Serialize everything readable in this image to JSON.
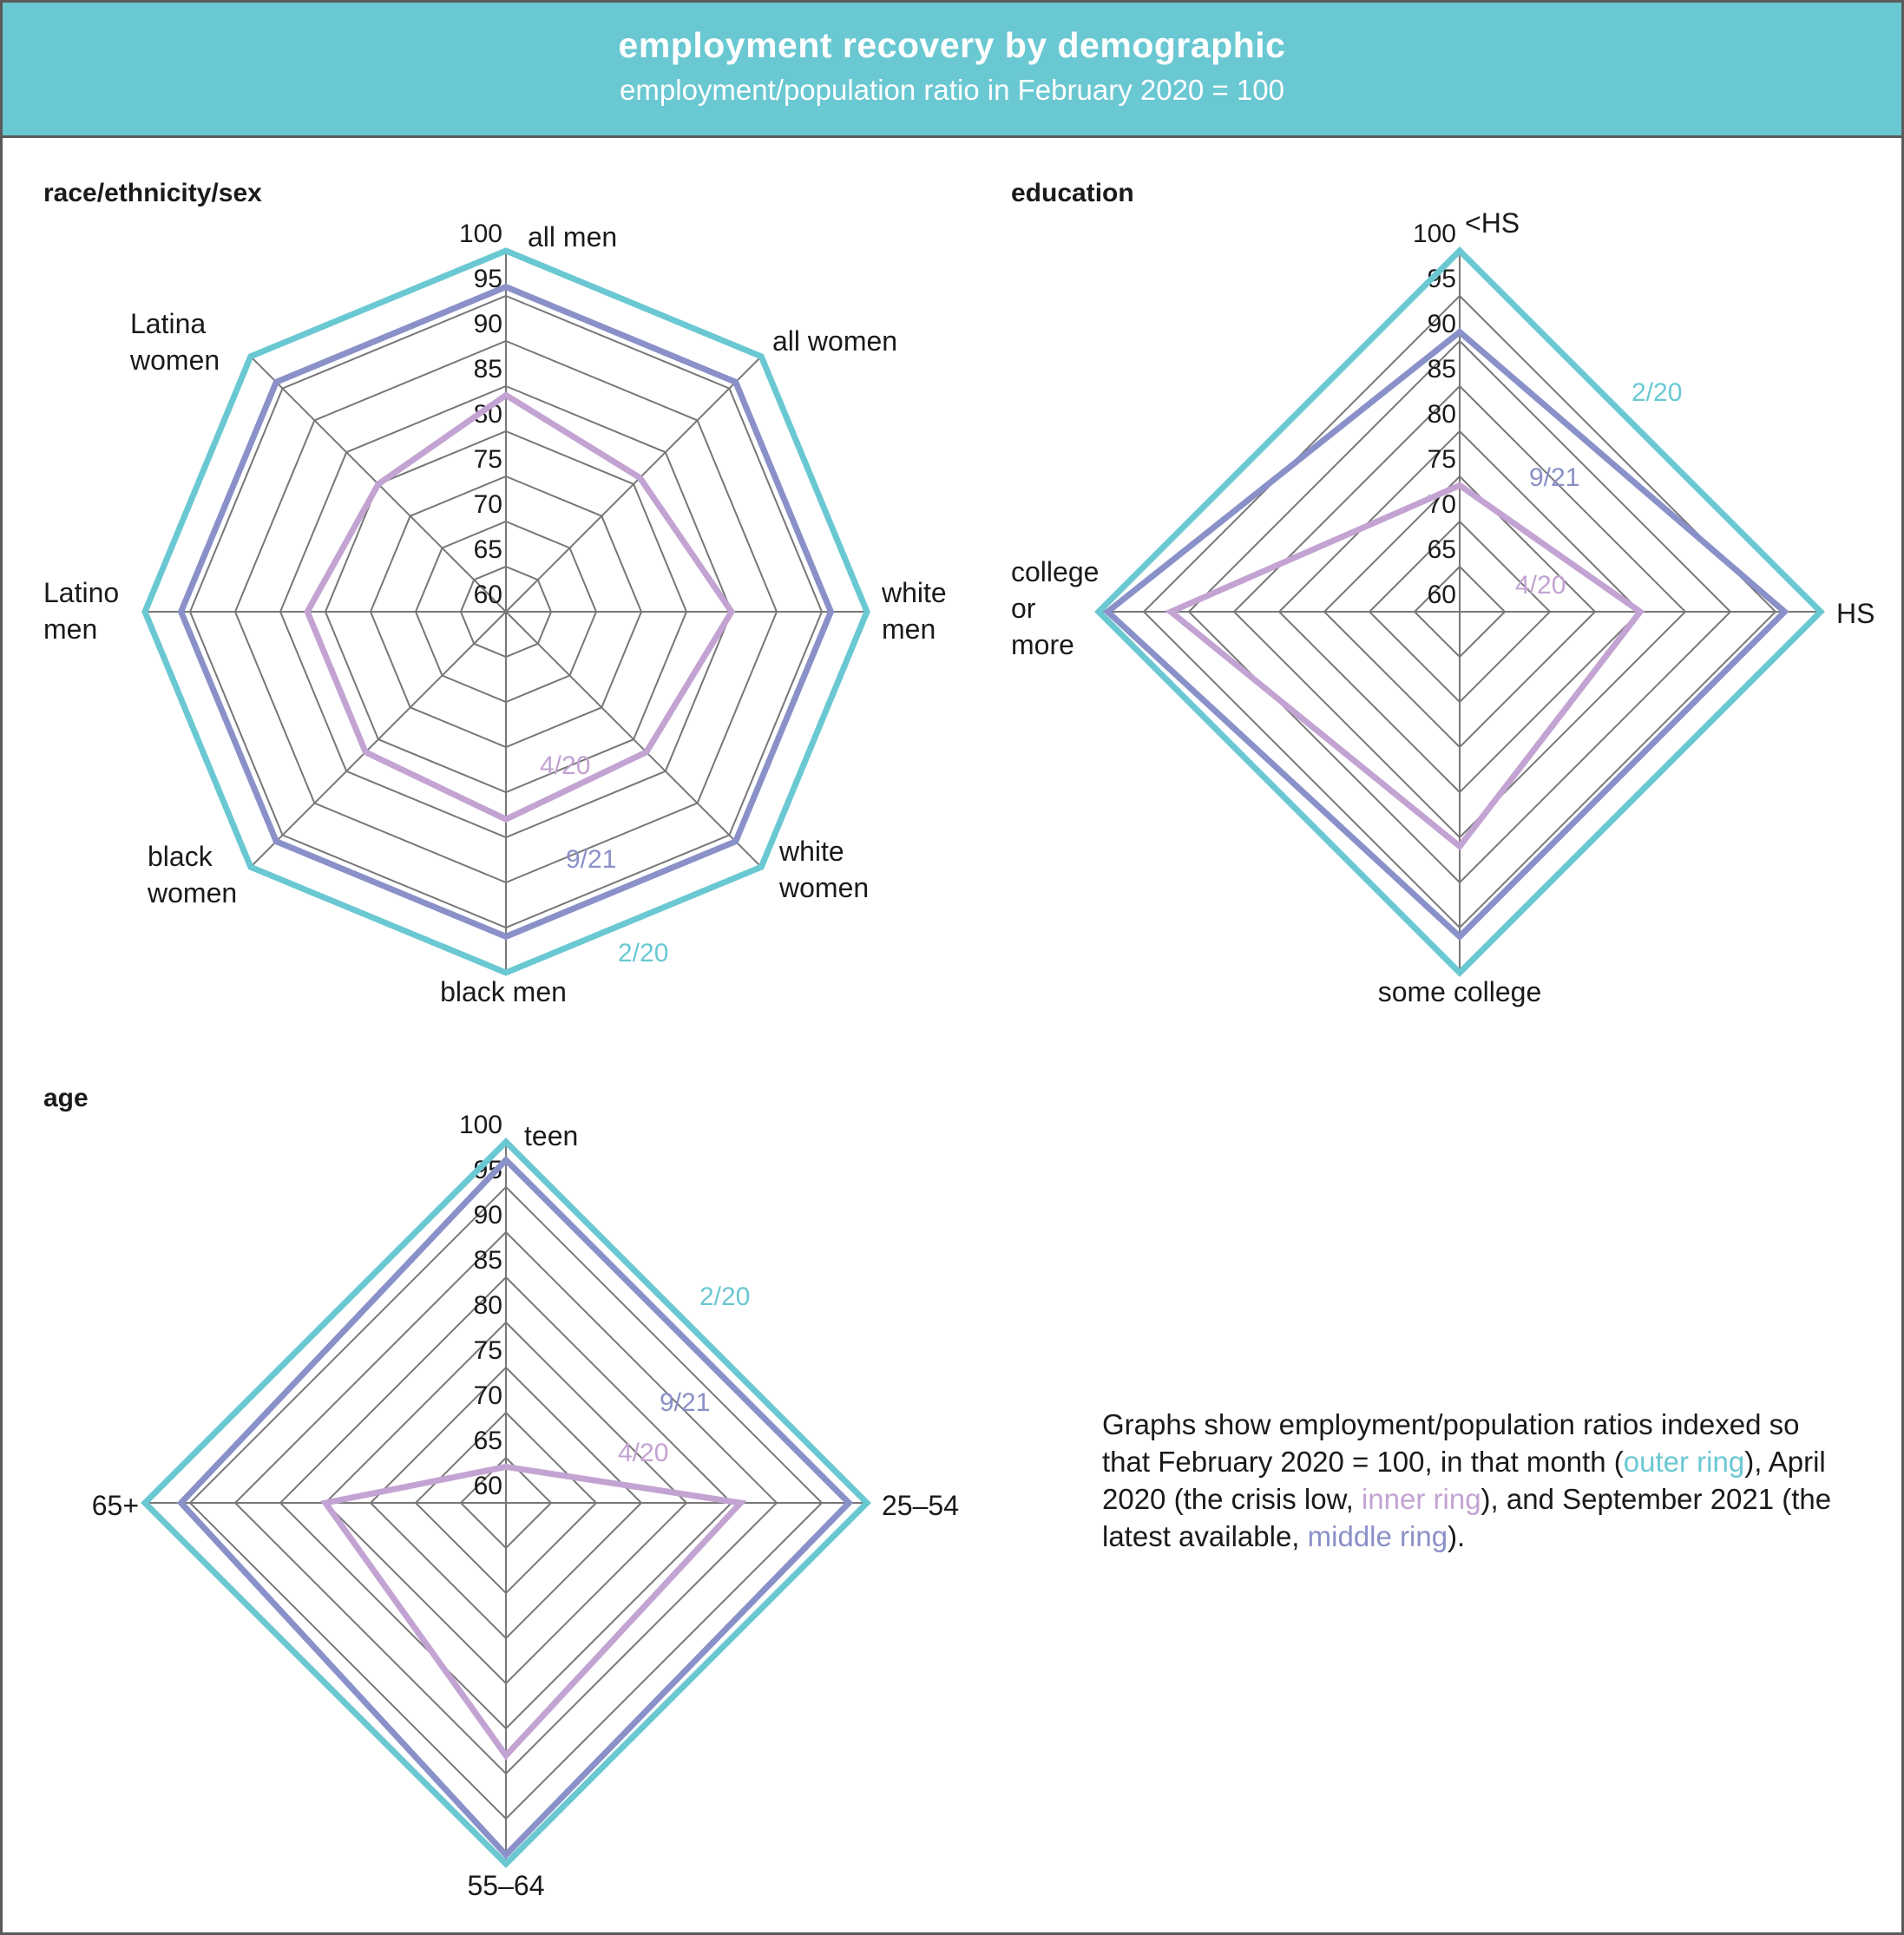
{
  "header": {
    "title": "employment recovery by demographic",
    "subtitle": "employment/population ratio in February 2020 = 100"
  },
  "colors": {
    "outer": "#6ac8d2",
    "middle": "#8a90c8",
    "inner": "#c3a3d2",
    "grid": "#777777",
    "text": "#1a1a1a"
  },
  "note": {
    "p1": "Graphs show employment/population ratios indexed so that February 2020 = 100, in that month (",
    "outer_label": "outer ring",
    "p2": "), April 2020 (the crisis low, ",
    "inner_label": "inner ring",
    "p3": "), and September 2021 (the latest available, ",
    "middle_label": "middle ring",
    "p4": ")."
  },
  "chart_data": [
    {
      "type": "radar",
      "title": "race/ethnicity/sex",
      "axes": [
        [
          "all men"
        ],
        [
          "all women"
        ],
        [
          "white",
          "men"
        ],
        [
          "white",
          "women"
        ],
        [
          "black men"
        ],
        [
          "black",
          "women"
        ],
        [
          "Latino",
          "men"
        ],
        [
          "Latina",
          "women"
        ]
      ],
      "range": [
        60,
        100
      ],
      "ticks": [
        "60",
        "65",
        "70",
        "75",
        "80",
        "85",
        "90",
        "95",
        "100"
      ],
      "series": [
        {
          "name": "2/20",
          "values": [
            100,
            100,
            100,
            100,
            100,
            100,
            100,
            100
          ]
        },
        {
          "name": "9/21",
          "values": [
            96,
            96,
            96,
            96,
            96,
            96,
            96,
            96
          ]
        },
        {
          "name": "4/20",
          "values": [
            84,
            81,
            85,
            82,
            83,
            82,
            82,
            80
          ]
        }
      ]
    },
    {
      "type": "radar",
      "title": "education",
      "axes": [
        [
          "<HS"
        ],
        [
          "HS"
        ],
        [
          "some college"
        ],
        [
          "college",
          "or",
          "more"
        ]
      ],
      "range": [
        60,
        100
      ],
      "ticks": [
        "60",
        "65",
        "70",
        "75",
        "80",
        "85",
        "90",
        "95",
        "100"
      ],
      "series": [
        {
          "name": "2/20",
          "values": [
            100,
            100,
            100,
            100
          ]
        },
        {
          "name": "9/21",
          "values": [
            91,
            96,
            96,
            99
          ]
        },
        {
          "name": "4/20",
          "values": [
            74,
            80,
            86,
            92
          ]
        }
      ]
    },
    {
      "type": "radar",
      "title": "age",
      "axes": [
        [
          "teen"
        ],
        [
          "25–54"
        ],
        [
          "55–64"
        ],
        [
          "65+"
        ]
      ],
      "range": [
        60,
        100
      ],
      "ticks": [
        "60",
        "65",
        "70",
        "75",
        "80",
        "85",
        "90",
        "95",
        "100"
      ],
      "series": [
        {
          "name": "2/20",
          "values": [
            100,
            100,
            100,
            100
          ]
        },
        {
          "name": "9/21",
          "values": [
            98,
            98,
            99,
            96
          ]
        },
        {
          "name": "4/20",
          "values": [
            64,
            86,
            88,
            80
          ]
        }
      ]
    }
  ]
}
